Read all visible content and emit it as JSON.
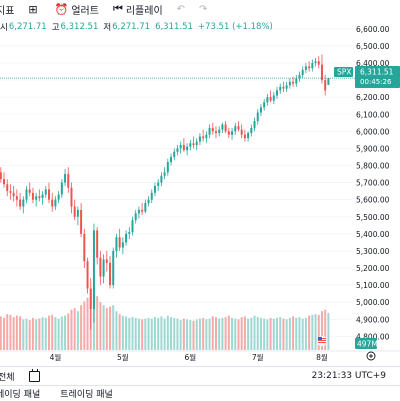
{
  "toolbar": {
    "cut_label": "지표",
    "alert_label": "얼러트",
    "replay_label": "리플레이",
    "undo_icon": "undo-icon",
    "redo_icon": "redo-icon"
  },
  "ohlc": {
    "open_label": "시",
    "open_value": "6,271.71",
    "high_label": "고",
    "high_value": "6,312.51",
    "low_label": "저",
    "low_value": "6,271.71",
    "close_value": "6,311.51",
    "change": "+73.51 (+1.18%)"
  },
  "colors": {
    "up": "#26a69a",
    "down": "#ef5350",
    "up_volume": "#9ed8d2",
    "down_volume": "#f7a9a7",
    "price_tag": "#26a69a",
    "volume_tag": "#26a69a"
  },
  "price_tag": {
    "symbol": "SPX",
    "price": "6,311.51",
    "countdown": "00:45:26"
  },
  "volume_tag": "497M",
  "x_axis_labels": [
    "4월",
    "5월",
    "6월",
    "7월",
    "8월"
  ],
  "bottom_bar": {
    "range_label": "전체",
    "calendar_icon": "calendar-icon",
    "clock": "23:21:33 UTC+9"
  },
  "panel_tabs": [
    "레이딩 패널",
    "트레이딩 패널"
  ],
  "chart_data": {
    "type": "candlestick",
    "symbol": "SPX",
    "y_ticks": [
      4800,
      4900,
      5000,
      5100,
      5200,
      5300,
      5400,
      5500,
      5600,
      5700,
      5800,
      5900,
      6000,
      6100,
      6200,
      6300,
      6400,
      6500,
      6600
    ],
    "ylim": [
      4720,
      6640
    ],
    "candles": [
      {
        "o": 5780,
        "h": 5805,
        "l": 5740,
        "c": 5760,
        "v": 420
      },
      {
        "o": 5760,
        "h": 5790,
        "l": 5700,
        "c": 5720,
        "v": 450
      },
      {
        "o": 5720,
        "h": 5760,
        "l": 5670,
        "c": 5690,
        "v": 430
      },
      {
        "o": 5690,
        "h": 5720,
        "l": 5620,
        "c": 5650,
        "v": 480
      },
      {
        "o": 5650,
        "h": 5690,
        "l": 5600,
        "c": 5640,
        "v": 470
      },
      {
        "o": 5640,
        "h": 5680,
        "l": 5590,
        "c": 5620,
        "v": 440
      },
      {
        "o": 5620,
        "h": 5660,
        "l": 5560,
        "c": 5600,
        "v": 460
      },
      {
        "o": 5600,
        "h": 5640,
        "l": 5540,
        "c": 5560,
        "v": 450
      },
      {
        "o": 5560,
        "h": 5620,
        "l": 5520,
        "c": 5600,
        "v": 410
      },
      {
        "o": 5600,
        "h": 5680,
        "l": 5580,
        "c": 5660,
        "v": 420
      },
      {
        "o": 5660,
        "h": 5700,
        "l": 5620,
        "c": 5640,
        "v": 400
      },
      {
        "o": 5640,
        "h": 5670,
        "l": 5580,
        "c": 5600,
        "v": 430
      },
      {
        "o": 5600,
        "h": 5640,
        "l": 5560,
        "c": 5620,
        "v": 410
      },
      {
        "o": 5620,
        "h": 5660,
        "l": 5590,
        "c": 5610,
        "v": 420
      },
      {
        "o": 5610,
        "h": 5650,
        "l": 5570,
        "c": 5630,
        "v": 440
      },
      {
        "o": 5630,
        "h": 5680,
        "l": 5610,
        "c": 5660,
        "v": 430
      },
      {
        "o": 5660,
        "h": 5700,
        "l": 5580,
        "c": 5600,
        "v": 460
      },
      {
        "o": 5600,
        "h": 5640,
        "l": 5530,
        "c": 5560,
        "v": 470
      },
      {
        "o": 5560,
        "h": 5620,
        "l": 5540,
        "c": 5600,
        "v": 440
      },
      {
        "o": 5600,
        "h": 5650,
        "l": 5580,
        "c": 5630,
        "v": 420
      },
      {
        "o": 5630,
        "h": 5720,
        "l": 5610,
        "c": 5700,
        "v": 450
      },
      {
        "o": 5700,
        "h": 5780,
        "l": 5680,
        "c": 5750,
        "v": 460
      },
      {
        "o": 5750,
        "h": 5790,
        "l": 5640,
        "c": 5670,
        "v": 490
      },
      {
        "o": 5670,
        "h": 5700,
        "l": 5520,
        "c": 5560,
        "v": 540
      },
      {
        "o": 5560,
        "h": 5600,
        "l": 5480,
        "c": 5500,
        "v": 560
      },
      {
        "o": 5500,
        "h": 5560,
        "l": 5450,
        "c": 5540,
        "v": 520
      },
      {
        "o": 5540,
        "h": 5580,
        "l": 5380,
        "c": 5400,
        "v": 600
      },
      {
        "o": 5400,
        "h": 5430,
        "l": 5200,
        "c": 5240,
        "v": 650
      },
      {
        "o": 5240,
        "h": 5260,
        "l": 5050,
        "c": 5080,
        "v": 700
      },
      {
        "o": 5080,
        "h": 5140,
        "l": 4840,
        "c": 4960,
        "v": 820
      },
      {
        "o": 4960,
        "h": 5460,
        "l": 4880,
        "c": 5420,
        "v": 830
      },
      {
        "o": 5420,
        "h": 5440,
        "l": 5220,
        "c": 5260,
        "v": 720
      },
      {
        "o": 5260,
        "h": 5300,
        "l": 5100,
        "c": 5150,
        "v": 640
      },
      {
        "o": 5150,
        "h": 5280,
        "l": 5110,
        "c": 5250,
        "v": 600
      },
      {
        "o": 5250,
        "h": 5300,
        "l": 5180,
        "c": 5230,
        "v": 560
      },
      {
        "o": 5230,
        "h": 5270,
        "l": 5080,
        "c": 5100,
        "v": 580
      },
      {
        "o": 5100,
        "h": 5320,
        "l": 5080,
        "c": 5300,
        "v": 600
      },
      {
        "o": 5300,
        "h": 5400,
        "l": 5260,
        "c": 5380,
        "v": 520
      },
      {
        "o": 5380,
        "h": 5430,
        "l": 5300,
        "c": 5320,
        "v": 480
      },
      {
        "o": 5320,
        "h": 5380,
        "l": 5280,
        "c": 5350,
        "v": 460
      },
      {
        "o": 5350,
        "h": 5420,
        "l": 5330,
        "c": 5400,
        "v": 450
      },
      {
        "o": 5400,
        "h": 5440,
        "l": 5370,
        "c": 5410,
        "v": 430
      },
      {
        "o": 5410,
        "h": 5500,
        "l": 5390,
        "c": 5480,
        "v": 440
      },
      {
        "o": 5480,
        "h": 5540,
        "l": 5460,
        "c": 5520,
        "v": 430
      },
      {
        "o": 5520,
        "h": 5560,
        "l": 5490,
        "c": 5540,
        "v": 420
      },
      {
        "o": 5540,
        "h": 5580,
        "l": 5510,
        "c": 5530,
        "v": 410
      },
      {
        "o": 5530,
        "h": 5600,
        "l": 5520,
        "c": 5580,
        "v": 420
      },
      {
        "o": 5580,
        "h": 5620,
        "l": 5560,
        "c": 5600,
        "v": 430
      },
      {
        "o": 5600,
        "h": 5660,
        "l": 5580,
        "c": 5640,
        "v": 420
      },
      {
        "o": 5640,
        "h": 5700,
        "l": 5620,
        "c": 5680,
        "v": 440
      },
      {
        "o": 5680,
        "h": 5720,
        "l": 5650,
        "c": 5700,
        "v": 430
      },
      {
        "o": 5700,
        "h": 5760,
        "l": 5680,
        "c": 5740,
        "v": 450
      },
      {
        "o": 5740,
        "h": 5790,
        "l": 5720,
        "c": 5760,
        "v": 420
      },
      {
        "o": 5760,
        "h": 5840,
        "l": 5740,
        "c": 5820,
        "v": 460
      },
      {
        "o": 5820,
        "h": 5870,
        "l": 5800,
        "c": 5850,
        "v": 440
      },
      {
        "o": 5850,
        "h": 5900,
        "l": 5830,
        "c": 5880,
        "v": 430
      },
      {
        "o": 5880,
        "h": 5920,
        "l": 5860,
        "c": 5900,
        "v": 420
      },
      {
        "o": 5900,
        "h": 5940,
        "l": 5870,
        "c": 5920,
        "v": 400
      },
      {
        "o": 5920,
        "h": 5960,
        "l": 5880,
        "c": 5890,
        "v": 420
      },
      {
        "o": 5890,
        "h": 5930,
        "l": 5860,
        "c": 5910,
        "v": 410
      },
      {
        "o": 5910,
        "h": 5950,
        "l": 5890,
        "c": 5930,
        "v": 400
      },
      {
        "o": 5930,
        "h": 5970,
        "l": 5900,
        "c": 5920,
        "v": 390
      },
      {
        "o": 5920,
        "h": 5960,
        "l": 5890,
        "c": 5940,
        "v": 410
      },
      {
        "o": 5940,
        "h": 5990,
        "l": 5920,
        "c": 5970,
        "v": 420
      },
      {
        "o": 5970,
        "h": 6010,
        "l": 5940,
        "c": 5960,
        "v": 430
      },
      {
        "o": 5960,
        "h": 6000,
        "l": 5930,
        "c": 5980,
        "v": 410
      },
      {
        "o": 5980,
        "h": 6040,
        "l": 5960,
        "c": 6020,
        "v": 420
      },
      {
        "o": 6020,
        "h": 6050,
        "l": 5980,
        "c": 6000,
        "v": 450
      },
      {
        "o": 6000,
        "h": 6030,
        "l": 5960,
        "c": 5990,
        "v": 440
      },
      {
        "o": 5990,
        "h": 6030,
        "l": 5970,
        "c": 6010,
        "v": 420
      },
      {
        "o": 6010,
        "h": 6050,
        "l": 5990,
        "c": 6040,
        "v": 430
      },
      {
        "o": 6040,
        "h": 6060,
        "l": 5990,
        "c": 6000,
        "v": 440
      },
      {
        "o": 6000,
        "h": 6020,
        "l": 5960,
        "c": 5980,
        "v": 460
      },
      {
        "o": 5980,
        "h": 6020,
        "l": 5950,
        "c": 6000,
        "v": 430
      },
      {
        "o": 6000,
        "h": 6050,
        "l": 5980,
        "c": 6030,
        "v": 420
      },
      {
        "o": 6030,
        "h": 6060,
        "l": 6000,
        "c": 6010,
        "v": 410
      },
      {
        "o": 6010,
        "h": 6040,
        "l": 5960,
        "c": 5980,
        "v": 440
      },
      {
        "o": 5980,
        "h": 6010,
        "l": 5940,
        "c": 5960,
        "v": 450
      },
      {
        "o": 5960,
        "h": 6000,
        "l": 5940,
        "c": 5990,
        "v": 420
      },
      {
        "o": 5990,
        "h": 6040,
        "l": 5970,
        "c": 6020,
        "v": 430
      },
      {
        "o": 6020,
        "h": 6080,
        "l": 6000,
        "c": 6060,
        "v": 460
      },
      {
        "o": 6060,
        "h": 6130,
        "l": 6040,
        "c": 6110,
        "v": 440
      },
      {
        "o": 6110,
        "h": 6160,
        "l": 6090,
        "c": 6140,
        "v": 430
      },
      {
        "o": 6140,
        "h": 6190,
        "l": 6120,
        "c": 6170,
        "v": 420
      },
      {
        "o": 6170,
        "h": 6220,
        "l": 6150,
        "c": 6200,
        "v": 410
      },
      {
        "o": 6200,
        "h": 6240,
        "l": 6170,
        "c": 6180,
        "v": 430
      },
      {
        "o": 6180,
        "h": 6230,
        "l": 6160,
        "c": 6210,
        "v": 420
      },
      {
        "o": 6210,
        "h": 6260,
        "l": 6190,
        "c": 6240,
        "v": 430
      },
      {
        "o": 6240,
        "h": 6280,
        "l": 6220,
        "c": 6260,
        "v": 440
      },
      {
        "o": 6260,
        "h": 6290,
        "l": 6230,
        "c": 6250,
        "v": 420
      },
      {
        "o": 6250,
        "h": 6290,
        "l": 6230,
        "c": 6270,
        "v": 410
      },
      {
        "o": 6270,
        "h": 6310,
        "l": 6250,
        "c": 6290,
        "v": 430
      },
      {
        "o": 6290,
        "h": 6320,
        "l": 6260,
        "c": 6280,
        "v": 450
      },
      {
        "o": 6280,
        "h": 6330,
        "l": 6260,
        "c": 6310,
        "v": 430
      },
      {
        "o": 6310,
        "h": 6350,
        "l": 6290,
        "c": 6330,
        "v": 440
      },
      {
        "o": 6330,
        "h": 6380,
        "l": 6310,
        "c": 6360,
        "v": 420
      },
      {
        "o": 6360,
        "h": 6400,
        "l": 6340,
        "c": 6380,
        "v": 430
      },
      {
        "o": 6380,
        "h": 6410,
        "l": 6350,
        "c": 6370,
        "v": 460
      },
      {
        "o": 6370,
        "h": 6420,
        "l": 6350,
        "c": 6400,
        "v": 470
      },
      {
        "o": 6400,
        "h": 6430,
        "l": 6380,
        "c": 6410,
        "v": 480
      },
      {
        "o": 6410,
        "h": 6440,
        "l": 6370,
        "c": 6390,
        "v": 470
      },
      {
        "o": 6390,
        "h": 6450,
        "l": 6280,
        "c": 6300,
        "v": 520
      },
      {
        "o": 6300,
        "h": 6330,
        "l": 6210,
        "c": 6240,
        "v": 540
      },
      {
        "o": 6271.71,
        "h": 6312.51,
        "l": 6271.71,
        "c": 6311.51,
        "v": 497
      }
    ]
  }
}
